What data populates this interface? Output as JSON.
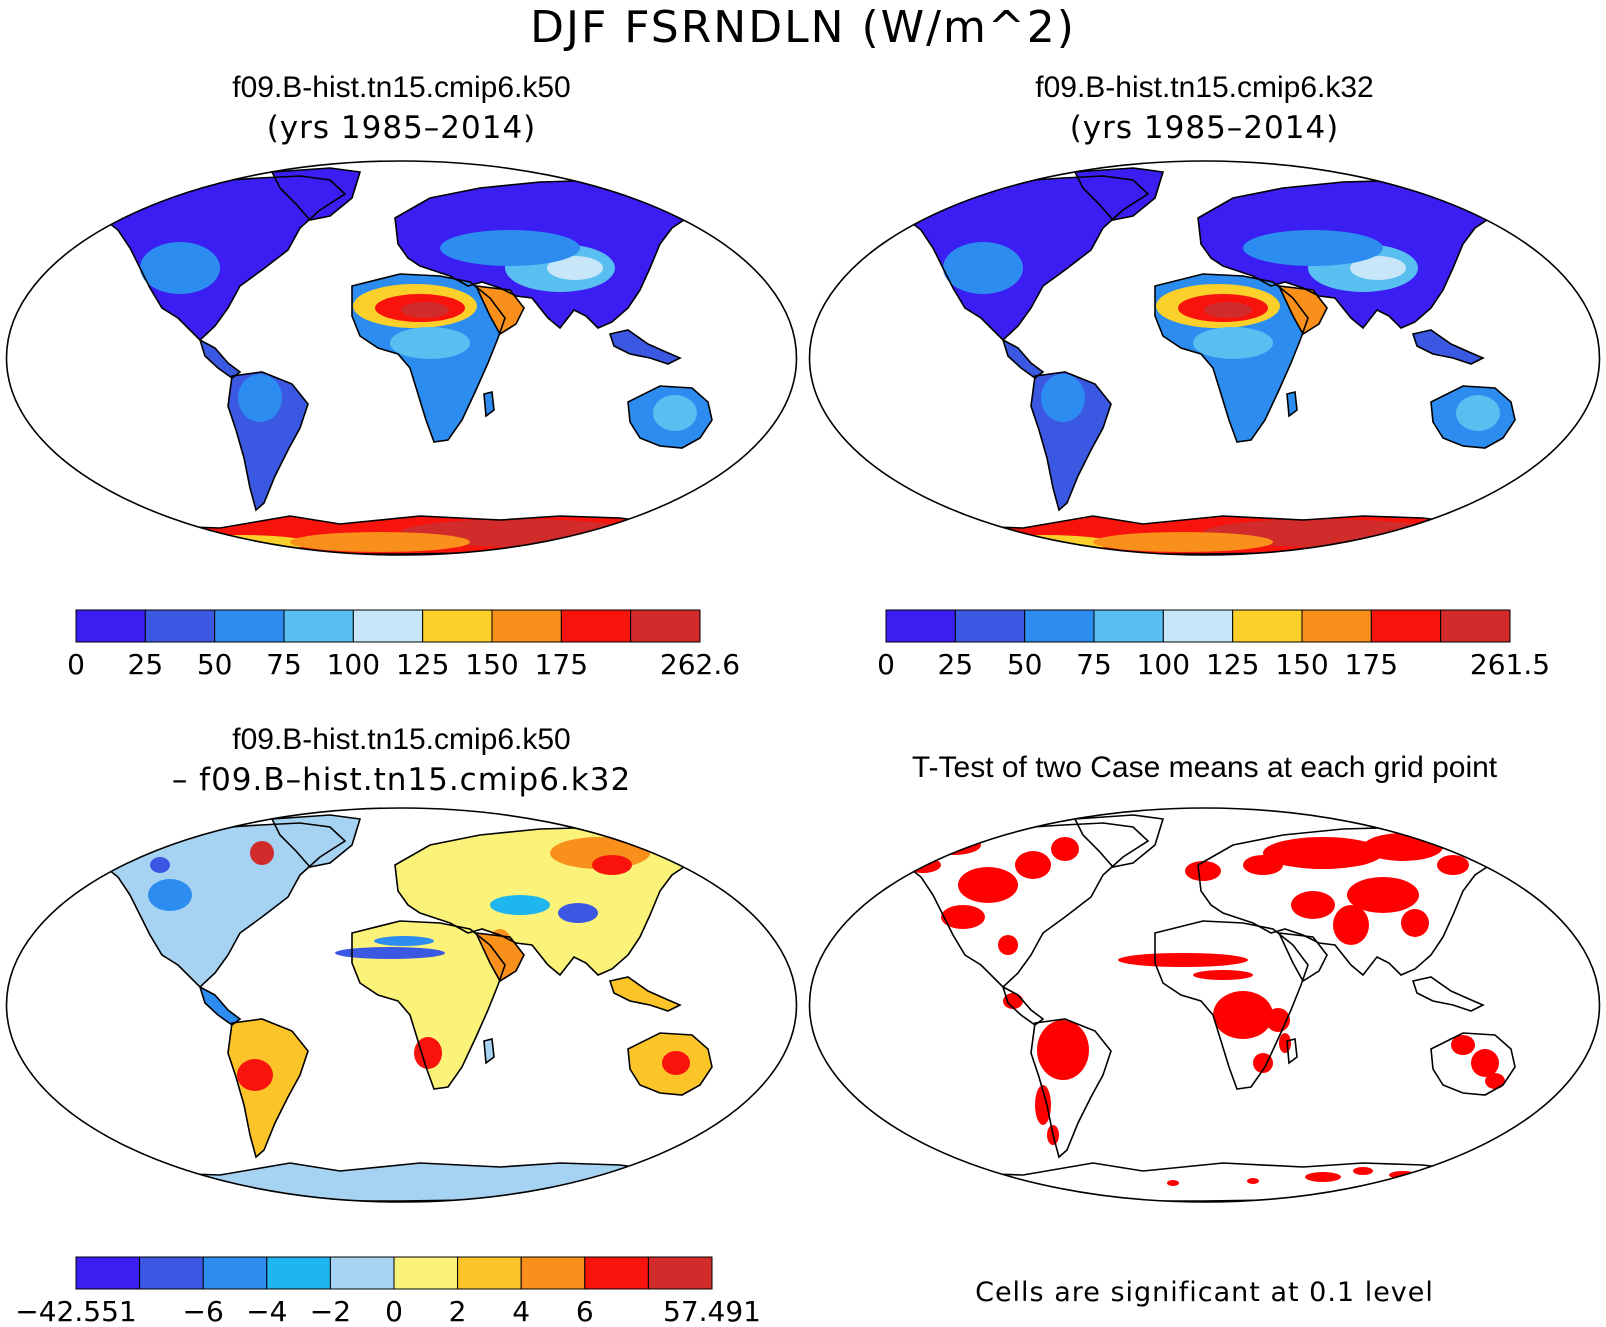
{
  "figure": {
    "main_title": "DJF FSRNDLN (W/m^2)"
  },
  "panels": [
    {
      "title_line1": "f09.B-hist.tn15.cmip6.k50",
      "title_line2": "(yrs 1985–2014)",
      "colorbar": {
        "colors": [
          "#3a1ef2",
          "#3b58e3",
          "#2c8cf0",
          "#58bff0",
          "#c7e6f7",
          "#fbd02a",
          "#f9901b",
          "#f8140d",
          "#d12b2b"
        ],
        "labels": [
          "0",
          "25",
          "50",
          "75",
          "100",
          "125",
          "150",
          "175",
          "",
          "262.6"
        ]
      }
    },
    {
      "title_line1": "f09.B-hist.tn15.cmip6.k32",
      "title_line2": "(yrs 1985–2014)",
      "colorbar": {
        "colors": [
          "#3a1ef2",
          "#3b58e3",
          "#2c8cf0",
          "#58bff0",
          "#c7e6f7",
          "#fbd02a",
          "#f9901b",
          "#f8140d",
          "#d12b2b"
        ],
        "labels": [
          "0",
          "25",
          "50",
          "75",
          "100",
          "125",
          "150",
          "175",
          "",
          "261.5"
        ]
      }
    },
    {
      "title_line1": "f09.B-hist.tn15.cmip6.k50",
      "title_line2": "– f09.B–hist.tn15.cmip6.k32",
      "colorbar": {
        "colors": [
          "#3a1ef2",
          "#3b58e3",
          "#2c8cf0",
          "#1fb5ee",
          "#a7d3f2",
          "#fbf27a",
          "#fbc52a",
          "#f9901b",
          "#f8140d",
          "#d12b2b"
        ],
        "labels": [
          "−42.551",
          "",
          "−6",
          "−4",
          "−2",
          "0",
          "2",
          "4",
          "6",
          "",
          "57.491"
        ]
      }
    },
    {
      "title_line1": "T-Test of two Case means at each grid point",
      "note": "Cells are significant at 0.1 level",
      "significant_color": "#ff0000"
    }
  ]
}
